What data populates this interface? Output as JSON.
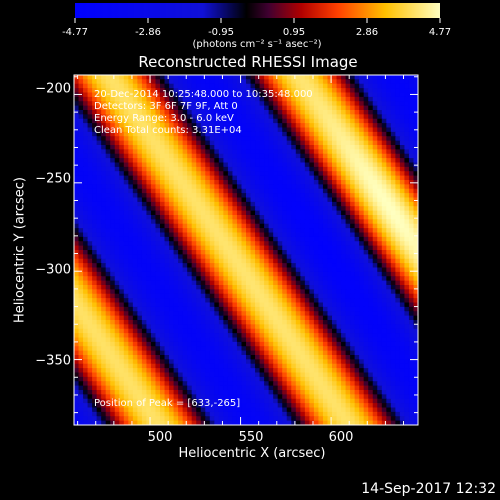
{
  "chart_data": {
    "type": "heatmap",
    "title": "Reconstructed RHESSI Image",
    "xlabel": "Heliocentric X (arcsec)",
    "ylabel": "Heliocentric Y (arcsec)",
    "xlim": [
      458,
      648
    ],
    "ylim": [
      -387,
      -189
    ],
    "x_ticks": [
      "500",
      "550",
      "600"
    ],
    "y_ticks": [
      "-200",
      "-250",
      "-300",
      "-350"
    ],
    "colorbar": {
      "label": "(photons cm⁻² s⁻¹ asec⁻²)",
      "ticks": [
        "-4.77",
        "-2.86",
        "-0.95",
        "0.95",
        "2.86",
        "4.77"
      ],
      "range": [
        -4.77,
        4.77
      ],
      "colormap": "blue-white-red"
    },
    "annotations": [
      "20-Dec-2014 10:25:48.000 to 10:35:48.000",
      "Detectors: 3F 6F 7F 9F, Att 0",
      "Energy Range: 3.0 - 6.0 keV",
      "Clean     Total counts: 3.31E+04"
    ],
    "peak_label": "Position of Peak = [633,-265]",
    "stripes": {
      "orientation": "diagonal",
      "peak_positions_at_top_edge_x": [
        478,
        582
      ],
      "peak_position_x_at_y_minus_265": 633,
      "period_arcsec": 105,
      "peak_value": 4.77,
      "min_value": -4.77
    }
  },
  "footer": {
    "date": "14-Sep-2017 12:32"
  }
}
